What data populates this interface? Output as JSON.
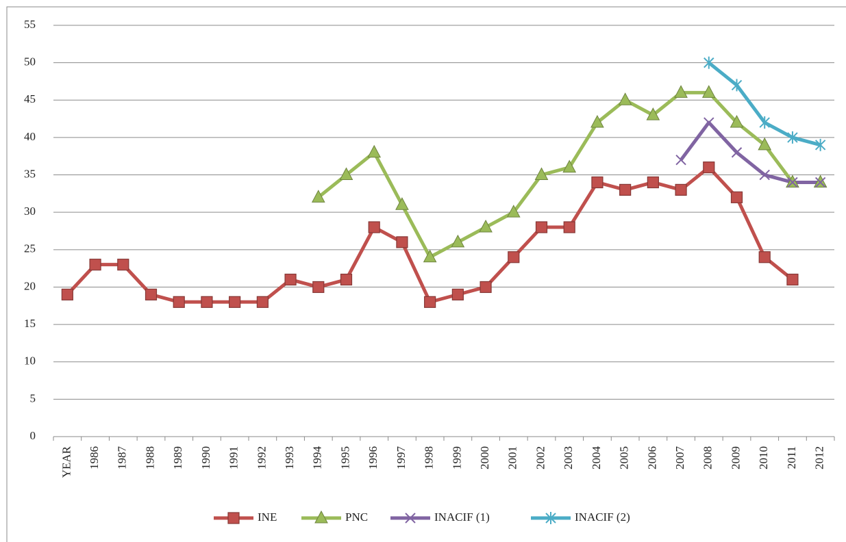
{
  "chart_data": {
    "type": "line",
    "categories": [
      "YEAR",
      "1986",
      "1987",
      "1988",
      "1989",
      "1990",
      "1991",
      "1992",
      "1993",
      "1994",
      "1995",
      "1996",
      "1997",
      "1998",
      "1999",
      "2000",
      "2001",
      "2002",
      "2003",
      "2004",
      "2005",
      "2006",
      "2007",
      "2008",
      "2009",
      "2010",
      "2011",
      "2012"
    ],
    "series": [
      {
        "name": "INE",
        "color": "#c0504d",
        "marker": "square",
        "values": [
          19,
          23,
          23,
          19,
          18,
          18,
          18,
          18,
          21,
          20,
          21,
          28,
          26,
          18,
          19,
          20,
          24,
          28,
          28,
          34,
          33,
          34,
          33,
          36,
          32,
          24,
          21,
          null
        ]
      },
      {
        "name": "PNC",
        "color": "#9bbb59",
        "marker": "triangle",
        "values": [
          null,
          null,
          null,
          null,
          null,
          null,
          null,
          null,
          null,
          32,
          35,
          38,
          31,
          24,
          26,
          28,
          30,
          35,
          36,
          42,
          45,
          43,
          46,
          46,
          42,
          39,
          34,
          34
        ]
      },
      {
        "name": "INACIF (1)",
        "color": "#8064a2",
        "marker": "x",
        "values": [
          null,
          null,
          null,
          null,
          null,
          null,
          null,
          null,
          null,
          null,
          null,
          null,
          null,
          null,
          null,
          null,
          null,
          null,
          null,
          null,
          null,
          null,
          37,
          42,
          38,
          35,
          34,
          34
        ]
      },
      {
        "name": "INACIF (2)",
        "color": "#4bacc6",
        "marker": "star",
        "values": [
          null,
          null,
          null,
          null,
          null,
          null,
          null,
          null,
          null,
          null,
          null,
          null,
          null,
          null,
          null,
          null,
          null,
          null,
          null,
          null,
          null,
          null,
          null,
          50,
          47,
          42,
          40,
          39
        ]
      }
    ],
    "ylim": [
      0,
      55
    ],
    "yticks": [
      0,
      5,
      10,
      15,
      20,
      25,
      30,
      35,
      40,
      45,
      50,
      55
    ],
    "grid": true,
    "legend": "bottom"
  }
}
